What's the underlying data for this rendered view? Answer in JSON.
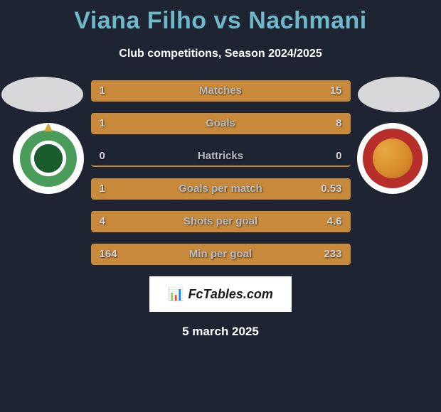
{
  "colors": {
    "background": "#1f2432",
    "title_color": "#6eb8c9",
    "bar_fill": "#c88a3a",
    "text_color": "#ffffff",
    "bar_label_color": "#b8bcc6",
    "bar_value_color": "#cfd2da"
  },
  "title": "Viana Filho vs Nachmani",
  "subtitle": "Club competitions, Season 2024/2025",
  "player_left": "Viana Filho",
  "player_right": "Nachmani",
  "stats": [
    {
      "label": "Matches",
      "val_left": "1",
      "val_right": "15",
      "fill_left_pct": 6,
      "fill_right_pct": 94
    },
    {
      "label": "Goals",
      "val_left": "1",
      "val_right": "8",
      "fill_left_pct": 11,
      "fill_right_pct": 89
    },
    {
      "label": "Hattricks",
      "val_left": "0",
      "val_right": "0",
      "fill_left_pct": 0,
      "fill_right_pct": 0
    },
    {
      "label": "Goals per match",
      "val_left": "1",
      "val_right": "0.53",
      "fill_left_pct": 65,
      "fill_right_pct": 35
    },
    {
      "label": "Shots per goal",
      "val_left": "4",
      "val_right": "4.6",
      "fill_left_pct": 47,
      "fill_right_pct": 53
    },
    {
      "label": "Min per goal",
      "val_left": "164",
      "val_right": "233",
      "fill_left_pct": 41,
      "fill_right_pct": 59
    }
  ],
  "watermark": "FcTables.com",
  "date": "5 march 2025"
}
